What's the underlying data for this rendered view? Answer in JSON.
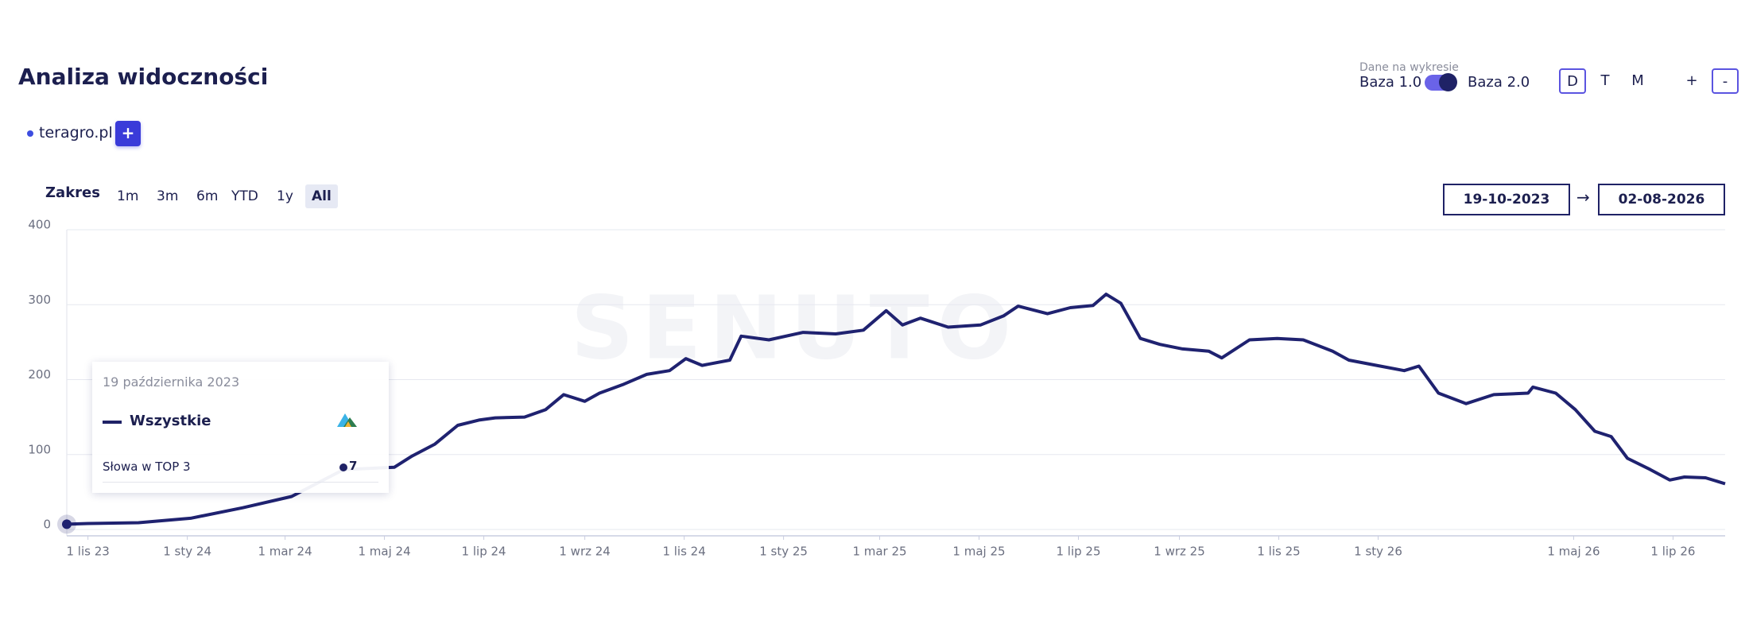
{
  "header": {
    "title": "Analiza widoczności",
    "domains": [
      "teragro.pl"
    ],
    "add_button": "+"
  },
  "data_toggle": {
    "caption": "Dane na wykresie",
    "left": "Baza 1.0",
    "right": "Baza 2.0"
  },
  "granularity": [
    "D",
    "T",
    "M"
  ],
  "zoom": [
    "+",
    "-"
  ],
  "range": {
    "label": "Zakres",
    "options": [
      "1m",
      "3m",
      "6m",
      "YTD",
      "1y",
      "All"
    ],
    "from": "19-10-2023",
    "arrow": "→",
    "to": "02-08-2026"
  },
  "tooltip": {
    "date": "19 października 2023",
    "metric": "Słowa w TOP 3"
  },
  "chart_data": {
    "type": "line",
    "watermark": "SENUTO",
    "x": [
      "2023-10-19",
      "2023-11-01",
      "2023-12-02",
      "2024-01-03",
      "2024-02-04",
      "2024-03-05",
      "2024-04-06",
      "2024-05-07",
      "2024-05-18",
      "2024-06-01",
      "2024-06-15",
      "2024-06-28",
      "2024-07-08",
      "2024-07-26",
      "2024-08-08",
      "2024-08-19",
      "2024-09-01",
      "2024-09-10",
      "2024-09-25",
      "2024-10-09",
      "2024-10-23",
      "2024-11-02",
      "2024-11-12",
      "2024-11-29",
      "2024-12-06",
      "2024-12-23",
      "2025-01-13",
      "2025-02-02",
      "2025-02-19",
      "2025-03-05",
      "2025-03-15",
      "2025-03-26",
      "2025-04-12",
      "2025-05-02",
      "2025-05-16",
      "2025-05-25",
      "2025-06-12",
      "2025-06-26",
      "2025-07-10",
      "2025-07-18",
      "2025-07-27",
      "2025-08-08",
      "2025-08-20",
      "2025-09-03",
      "2025-09-19",
      "2025-09-27",
      "2025-10-14",
      "2025-10-31",
      "2025-11-16",
      "2025-12-04",
      "2025-12-14",
      "2025-12-31",
      "2026-01-17",
      "2026-01-26",
      "2026-02-07",
      "2026-02-24",
      "2026-03-13",
      "2026-04-03",
      "2026-04-06",
      "2026-04-20",
      "2026-05-02",
      "2026-05-14",
      "2026-05-24",
      "2026-06-03",
      "2026-06-17",
      "2026-06-29",
      "2026-07-08",
      "2026-07-21",
      "2026-08-02"
    ],
    "series": [
      {
        "name": "Wszystkie",
        "color": "#1f2270",
        "values": [
          7,
          8,
          9,
          15,
          29,
          44,
          80,
          83,
          98,
          114,
          139,
          146,
          149,
          150,
          160,
          180,
          171,
          182,
          194,
          207,
          212,
          228,
          219,
          226,
          258,
          253,
          263,
          261,
          266,
          292,
          273,
          282,
          270,
          273,
          285,
          298,
          288,
          296,
          299,
          314,
          302,
          255,
          247,
          241,
          238,
          229,
          253,
          255,
          253,
          238,
          226,
          219,
          212,
          218,
          182,
          168,
          180,
          182,
          190,
          182,
          160,
          131,
          124,
          95,
          80,
          66,
          70,
          69,
          61
        ]
      }
    ],
    "xlim": [
      "2023-10-19",
      "2026-08-02"
    ],
    "xticks": [
      {
        "value": "2023-11-01",
        "label": "1 lis 23"
      },
      {
        "value": "2024-01-01",
        "label": "1 sty 24"
      },
      {
        "value": "2024-03-01",
        "label": "1 mar 24"
      },
      {
        "value": "2024-05-01",
        "label": "1 maj 24"
      },
      {
        "value": "2024-07-01",
        "label": "1 lip 24"
      },
      {
        "value": "2024-09-01",
        "label": "1 wrz 24"
      },
      {
        "value": "2024-11-01",
        "label": "1 lis 24"
      },
      {
        "value": "2025-01-01",
        "label": "1 sty 25"
      },
      {
        "value": "2025-03-01",
        "label": "1 mar 25"
      },
      {
        "value": "2025-05-01",
        "label": "1 maj 25"
      },
      {
        "value": "2025-07-01",
        "label": "1 lip 25"
      },
      {
        "value": "2025-09-01",
        "label": "1 wrz 25"
      },
      {
        "value": "2025-11-01",
        "label": "1 lis 25"
      },
      {
        "value": "2026-01-01",
        "label": "1 sty 26"
      },
      {
        "value": "2026-05-01",
        "label": "1 maj 26"
      },
      {
        "value": "2026-07-01",
        "label": "1 lip 26"
      }
    ],
    "ylim": [
      0,
      400
    ],
    "yticks": [
      0,
      100,
      200,
      300,
      400
    ],
    "grid": true
  }
}
